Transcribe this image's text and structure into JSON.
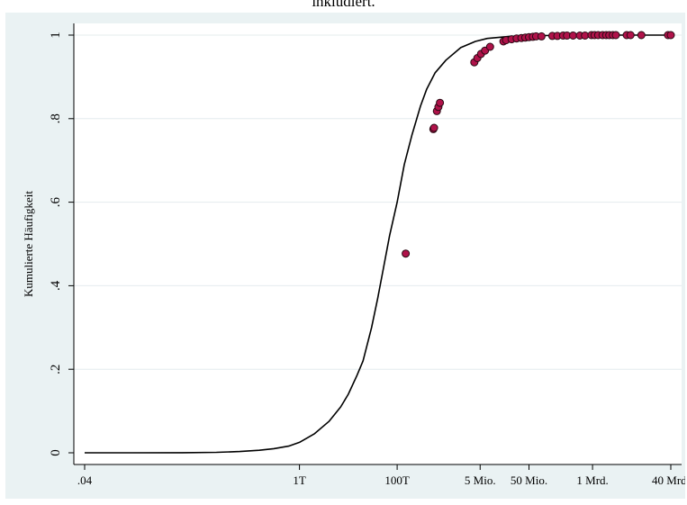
{
  "caption": "inkludiert.",
  "chart_data": {
    "type": "line",
    "title": "",
    "xlabel": "",
    "ylabel": "Kumulierte Häufigkeit",
    "x_scale": "log",
    "xlim": [
      0.04,
      40000000000
    ],
    "ylim": [
      0,
      1
    ],
    "grid": "horizontal",
    "x_ticks": [
      {
        "value": 0.04,
        "label": ".04"
      },
      {
        "value": 1000,
        "label": "1T"
      },
      {
        "value": 100000,
        "label": "100T"
      },
      {
        "value": 5000000,
        "label": "5 Mio."
      },
      {
        "value": 50000000,
        "label": "50 Mio."
      },
      {
        "value": 1000000000,
        "label": "1 Mrd."
      },
      {
        "value": 40000000000,
        "label": "40 Mrd."
      }
    ],
    "y_ticks": [
      {
        "value": 0,
        "label": "0"
      },
      {
        "value": 0.2,
        "label": ".2"
      },
      {
        "value": 0.4,
        "label": ".4"
      },
      {
        "value": 0.6,
        "label": ".6"
      },
      {
        "value": 0.8,
        "label": ".8"
      },
      {
        "value": 1,
        "label": "1"
      }
    ],
    "series": [
      {
        "kind": "line",
        "color": "#000000",
        "x": [
          0.04,
          0.4,
          4,
          20,
          60,
          150,
          300,
          600,
          1000,
          2000,
          4000,
          7000,
          10000,
          15000,
          20000,
          30000,
          40000,
          50000,
          70000,
          100000,
          140000,
          200000,
          300000,
          400000,
          600000,
          1000000,
          2000000,
          4000000,
          7000000,
          20000000,
          100000000,
          1000000000,
          40000000000
        ],
        "y": [
          0,
          0,
          0.0003,
          0.001,
          0.003,
          0.006,
          0.01,
          0.016,
          0.025,
          0.045,
          0.075,
          0.11,
          0.14,
          0.185,
          0.22,
          0.3,
          0.37,
          0.43,
          0.52,
          0.6,
          0.69,
          0.76,
          0.83,
          0.87,
          0.91,
          0.94,
          0.97,
          0.985,
          0.992,
          0.997,
          0.999,
          1.0,
          1.0
        ]
      },
      {
        "kind": "scatter",
        "color": "#b0124a",
        "x": [
          150000,
          550000,
          570000,
          650000,
          700000,
          750000,
          3800000,
          4400000,
          5200000,
          6300000,
          8000000,
          15000000,
          17000000,
          22000000,
          28000000,
          35000000,
          42000000,
          50000000,
          60000000,
          70000000,
          90000000,
          150000000,
          190000000,
          250000000,
          300000000,
          400000000,
          550000000,
          700000000,
          950000000,
          1100000000,
          1300000000,
          1600000000,
          1900000000,
          2200000000,
          2600000000,
          3000000000,
          5000000000,
          6000000000,
          10000000000,
          35000000000,
          40000000000
        ],
        "y": [
          0.477,
          0.775,
          0.778,
          0.818,
          0.828,
          0.838,
          0.935,
          0.945,
          0.955,
          0.963,
          0.972,
          0.985,
          0.988,
          0.99,
          0.992,
          0.993,
          0.994,
          0.995,
          0.996,
          0.997,
          0.997,
          0.998,
          0.998,
          0.999,
          0.999,
          0.999,
          0.999,
          0.999,
          1.0,
          1.0,
          1.0,
          1.0,
          1.0,
          1.0,
          1.0,
          1.0,
          1.0,
          1.0,
          1.0,
          1.0,
          1.0
        ]
      }
    ]
  }
}
